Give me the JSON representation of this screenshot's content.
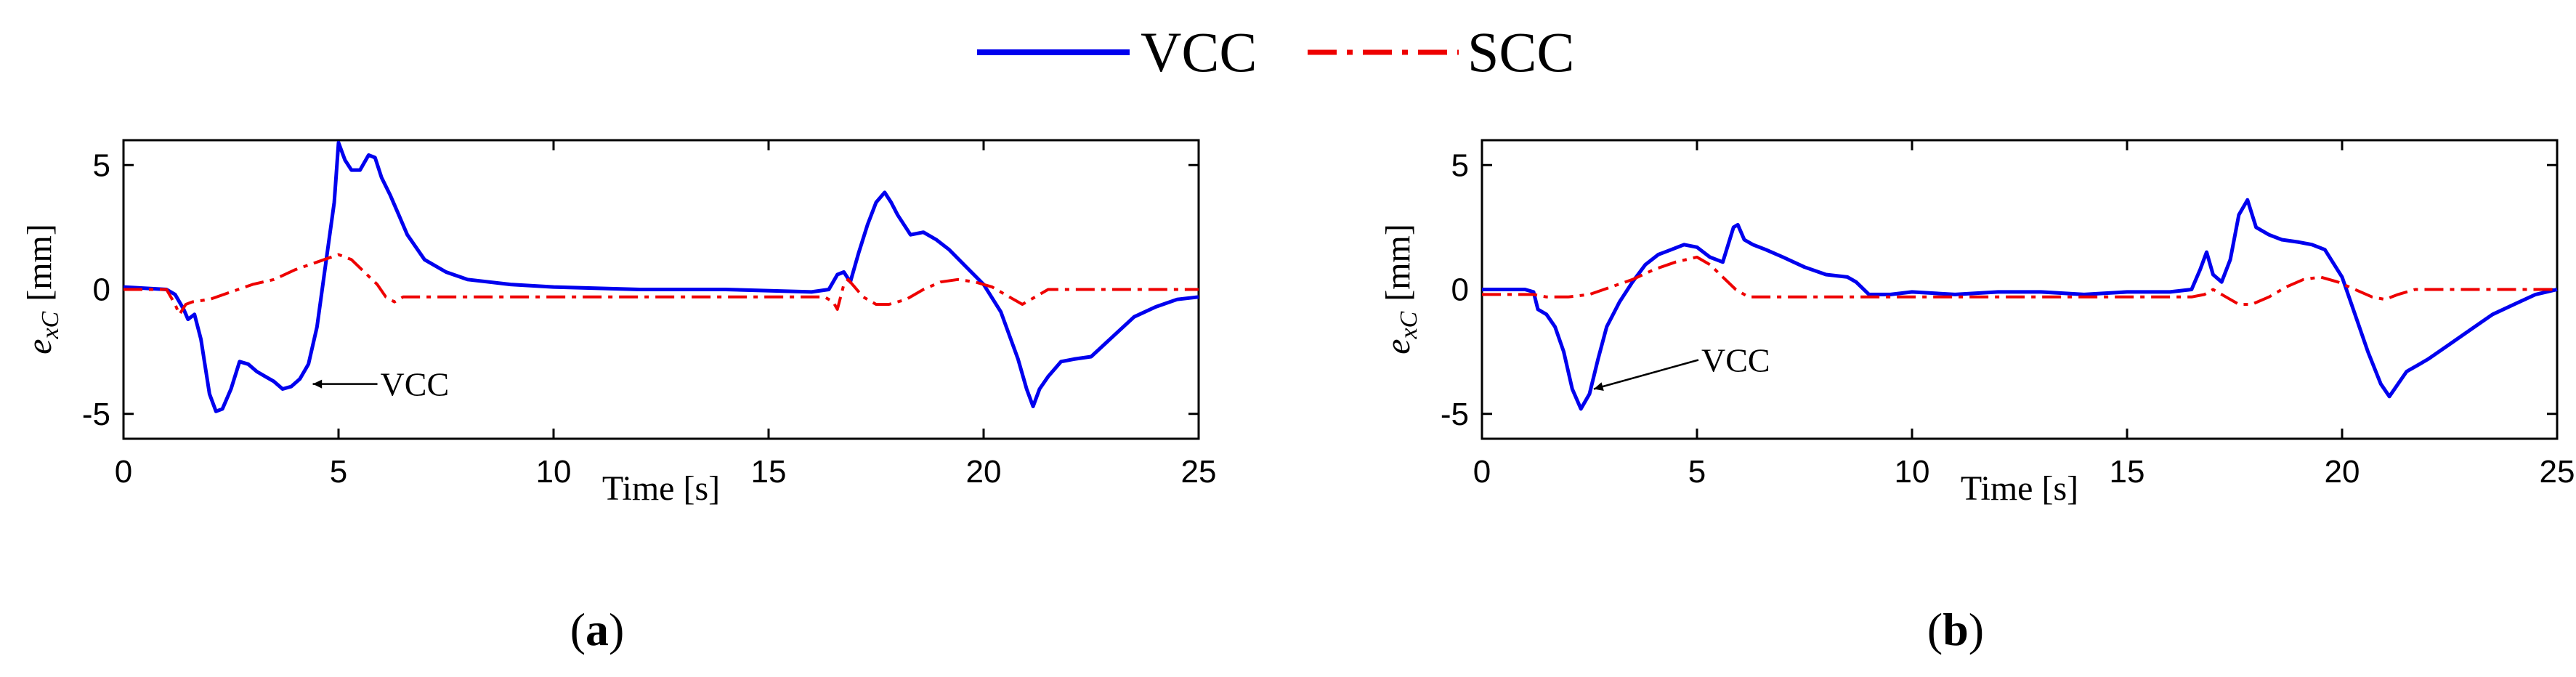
{
  "legend": {
    "items": [
      {
        "name": "VCC",
        "color": "#0000ee",
        "style": "solid"
      },
      {
        "name": "SCC",
        "color": "#ee0000",
        "style": "dashdot"
      }
    ]
  },
  "chart_data": [
    {
      "type": "line",
      "panel": "a",
      "caption_open": "(",
      "caption_letter": "a",
      "caption_close": ")",
      "xlabel": "Time [s]",
      "ylabel_base": "e",
      "ylabel_sub": "xC",
      "ylabel_unit": "[mm]",
      "xlim": [
        0,
        25
      ],
      "ylim": [
        -6,
        6
      ],
      "xticks": [
        0,
        5,
        10,
        15,
        20,
        25
      ],
      "yticks": [
        -5,
        0,
        5
      ],
      "annotation": {
        "text": "VCC",
        "x": 4.3,
        "y": -3.8
      },
      "series": [
        {
          "name": "VCC",
          "x": [
            0,
            1.0,
            1.2,
            1.4,
            1.5,
            1.65,
            1.8,
            2.0,
            2.15,
            2.3,
            2.5,
            2.7,
            2.9,
            3.1,
            3.3,
            3.5,
            3.7,
            3.9,
            4.1,
            4.3,
            4.5,
            4.7,
            4.9,
            5.0,
            5.15,
            5.3,
            5.5,
            5.7,
            5.85,
            6.0,
            6.2,
            6.4,
            6.6,
            7.0,
            7.5,
            8.0,
            8.5,
            9.0,
            10,
            12,
            14,
            16,
            16.4,
            16.6,
            16.75,
            16.9,
            17.1,
            17.3,
            17.5,
            17.7,
            17.85,
            18.0,
            18.3,
            18.6,
            18.9,
            19.2,
            19.6,
            20.0,
            20.4,
            20.8,
            21.0,
            21.15,
            21.3,
            21.5,
            21.8,
            22.1,
            22.5,
            23,
            23.5,
            24,
            24.5,
            25
          ],
          "y": [
            0.1,
            0.0,
            -0.2,
            -0.8,
            -1.2,
            -1.0,
            -2.0,
            -4.2,
            -4.9,
            -4.8,
            -4.0,
            -2.9,
            -3.0,
            -3.3,
            -3.5,
            -3.7,
            -4.0,
            -3.9,
            -3.6,
            -3.0,
            -1.5,
            1.0,
            3.5,
            5.9,
            5.2,
            4.8,
            4.8,
            5.4,
            5.3,
            4.5,
            3.8,
            3.0,
            2.2,
            1.2,
            0.7,
            0.4,
            0.3,
            0.2,
            0.1,
            0.0,
            0.0,
            -0.1,
            0.0,
            0.6,
            0.7,
            0.3,
            1.5,
            2.6,
            3.5,
            3.9,
            3.5,
            3.0,
            2.2,
            2.3,
            2.0,
            1.6,
            0.9,
            0.2,
            -0.9,
            -2.8,
            -4.0,
            -4.7,
            -4.0,
            -3.5,
            -2.9,
            -2.8,
            -2.7,
            -1.9,
            -1.1,
            -0.7,
            -0.4,
            -0.3
          ]
        },
        {
          "name": "SCC",
          "x": [
            0,
            1.0,
            1.2,
            1.3,
            1.45,
            1.6,
            2.0,
            2.5,
            3.0,
            3.5,
            4.0,
            4.5,
            5.0,
            5.3,
            5.6,
            5.9,
            6.1,
            6.3,
            6.5,
            7,
            8,
            10,
            12,
            14,
            16.0,
            16.3,
            16.5,
            16.6,
            16.75,
            16.85,
            17.0,
            17.2,
            17.5,
            17.8,
            18.2,
            18.6,
            19.0,
            19.4,
            19.8,
            20.2,
            20.6,
            20.9,
            21.2,
            21.5,
            22,
            23,
            24,
            25
          ],
          "y": [
            0.0,
            0.0,
            -0.6,
            -1.0,
            -0.6,
            -0.5,
            -0.4,
            -0.1,
            0.2,
            0.4,
            0.8,
            1.1,
            1.4,
            1.2,
            0.7,
            0.2,
            -0.3,
            -0.5,
            -0.3,
            -0.3,
            -0.3,
            -0.3,
            -0.3,
            -0.3,
            -0.3,
            -0.3,
            -0.5,
            -0.8,
            0.2,
            0.4,
            0.1,
            -0.3,
            -0.6,
            -0.6,
            -0.4,
            0.0,
            0.3,
            0.4,
            0.3,
            0.1,
            -0.3,
            -0.6,
            -0.3,
            0.0,
            0.0,
            0.0,
            0.0,
            0.0
          ]
        }
      ]
    },
    {
      "type": "line",
      "panel": "b",
      "caption_open": "(",
      "caption_letter": "b",
      "caption_close": ")",
      "xlabel": "Time [s]",
      "ylabel_base": "e",
      "ylabel_sub": "xC",
      "ylabel_unit": "[mm]",
      "xlim": [
        0,
        25
      ],
      "ylim": [
        -6,
        6
      ],
      "xticks": [
        0,
        5,
        10,
        15,
        20,
        25
      ],
      "yticks": [
        -5,
        0,
        5
      ],
      "annotation": {
        "text": "VCC",
        "x": 2.5,
        "y": -4.0
      },
      "series": [
        {
          "name": "VCC",
          "x": [
            0,
            1.0,
            1.2,
            1.3,
            1.5,
            1.7,
            1.9,
            2.1,
            2.3,
            2.5,
            2.7,
            2.9,
            3.2,
            3.5,
            3.8,
            4.1,
            4.4,
            4.7,
            5.0,
            5.3,
            5.6,
            5.85,
            5.95,
            6.1,
            6.3,
            6.6,
            7.0,
            7.5,
            8.0,
            8.5,
            8.7,
            9.0,
            9.5,
            10,
            11,
            12,
            13,
            14,
            15,
            16,
            16.5,
            16.7,
            16.85,
            17.0,
            17.2,
            17.4,
            17.6,
            17.8,
            18.0,
            18.3,
            18.6,
            19.0,
            19.3,
            19.6,
            20.0,
            20.3,
            20.6,
            20.9,
            21.1,
            21.3,
            21.5,
            21.8,
            22,
            22.5,
            23,
            23.5,
            24,
            24.5,
            25
          ],
          "y": [
            0.0,
            0.0,
            -0.1,
            -0.8,
            -1.0,
            -1.5,
            -2.5,
            -4.0,
            -4.8,
            -4.2,
            -2.8,
            -1.5,
            -0.5,
            0.3,
            1.0,
            1.4,
            1.6,
            1.8,
            1.7,
            1.3,
            1.1,
            2.5,
            2.6,
            2.0,
            1.8,
            1.6,
            1.3,
            0.9,
            0.6,
            0.5,
            0.3,
            -0.2,
            -0.2,
            -0.1,
            -0.2,
            -0.1,
            -0.1,
            -0.2,
            -0.1,
            -0.1,
            0.0,
            0.8,
            1.5,
            0.6,
            0.3,
            1.2,
            3.0,
            3.6,
            2.5,
            2.2,
            2.0,
            1.9,
            1.8,
            1.6,
            0.5,
            -1.0,
            -2.5,
            -3.8,
            -4.3,
            -3.8,
            -3.3,
            -3.0,
            -2.8,
            -2.2,
            -1.6,
            -1.0,
            -0.6,
            -0.2,
            0.0
          ]
        },
        {
          "name": "SCC",
          "x": [
            0,
            1.0,
            1.2,
            1.5,
            2.0,
            2.5,
            3.0,
            3.5,
            4.0,
            4.5,
            5.0,
            5.3,
            5.6,
            5.9,
            6.2,
            6.5,
            7,
            8,
            10,
            12,
            14,
            16.0,
            16.5,
            16.8,
            17.0,
            17.3,
            17.6,
            17.9,
            18.3,
            18.7,
            19.1,
            19.5,
            19.9,
            20.3,
            20.7,
            21.0,
            21.3,
            21.7,
            22,
            23,
            24,
            25
          ],
          "y": [
            -0.2,
            -0.2,
            -0.2,
            -0.3,
            -0.3,
            -0.2,
            0.1,
            0.4,
            0.8,
            1.1,
            1.3,
            1.0,
            0.5,
            0.0,
            -0.3,
            -0.3,
            -0.3,
            -0.3,
            -0.3,
            -0.3,
            -0.3,
            -0.3,
            -0.3,
            -0.2,
            0.0,
            -0.3,
            -0.6,
            -0.6,
            -0.3,
            0.1,
            0.4,
            0.5,
            0.3,
            0.0,
            -0.3,
            -0.4,
            -0.2,
            0.0,
            0.0,
            0.0,
            0.0,
            0.0
          ]
        }
      ]
    }
  ]
}
